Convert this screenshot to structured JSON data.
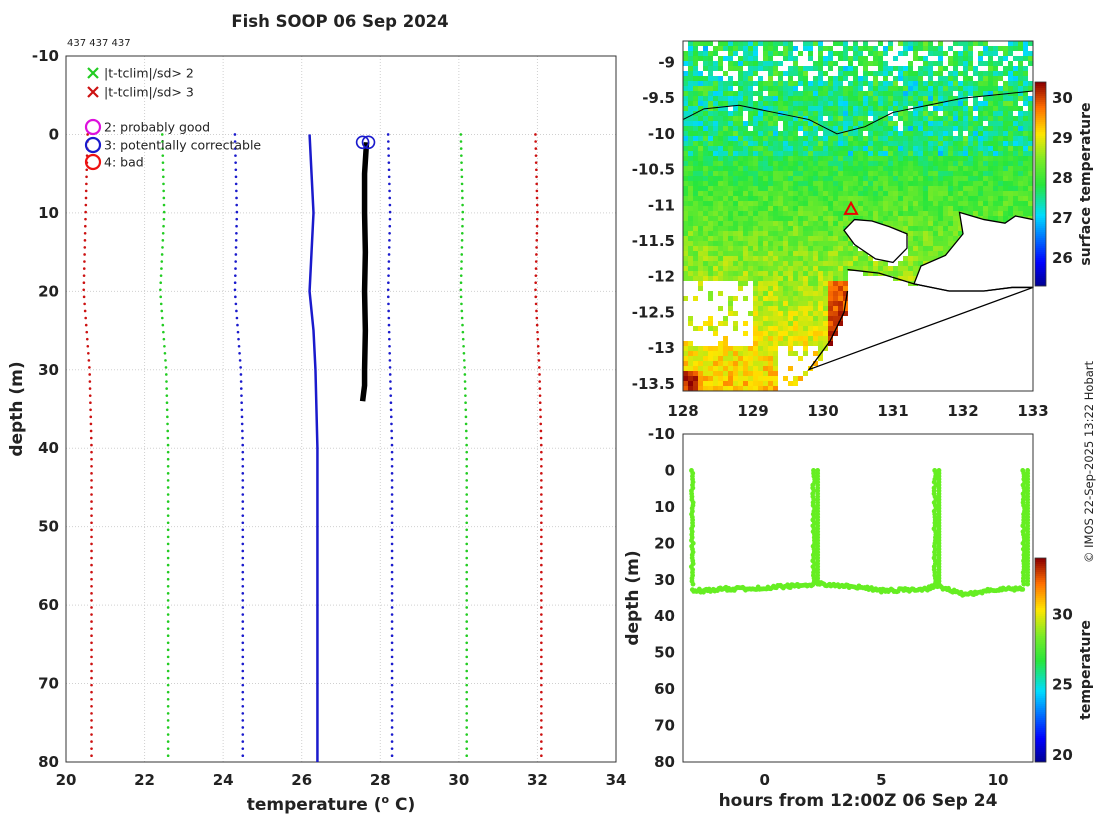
{
  "title": "Fish SOOP 06 Sep 2024",
  "id_text": "437 437 437",
  "credit": "© IMOS 22-Sep-2025 13:22 Hobart",
  "colors": {
    "green_limit": "#22cc22",
    "red_limit": "#cc1111",
    "blue_limit": "#1a1acc",
    "climatology": "#1a1acc",
    "profile": "#000000",
    "track": "#66ee22"
  },
  "chart_data": [
    {
      "type": "line",
      "name": "profile",
      "xlabel": "temperature (",
      "xlabel_sup": "o",
      "xlabel_end": " C)",
      "ylabel": "depth (m)",
      "xlim": [
        20,
        34
      ],
      "ylim": [
        -10,
        80
      ],
      "xticks": [
        "20",
        "22",
        "24",
        "26",
        "28",
        "30",
        "32",
        "34"
      ],
      "yticks": [
        "-10",
        "0",
        "10",
        "20",
        "30",
        "40",
        "50",
        "60",
        "70",
        "80"
      ],
      "legend": [
        {
          "marker": "x",
          "color": "#22cc22",
          "label": "|t-tclim|/sd> 2"
        },
        {
          "marker": "x",
          "color": "#cc1111",
          "label": "|t-tclim|/sd> 3"
        },
        {
          "marker": "o",
          "color": "#dd11dd",
          "label": "2: probably good"
        },
        {
          "marker": "o",
          "color": "#1a1acc",
          "label": "3: potentially correctable"
        },
        {
          "marker": "o",
          "color": "#ee1111",
          "label": "4: bad"
        }
      ],
      "series": [
        {
          "name": "climatology",
          "style": "solid",
          "color": "#1a1acc",
          "points": [
            [
              26.2,
              0
            ],
            [
              26.25,
              5
            ],
            [
              26.3,
              10
            ],
            [
              26.25,
              15
            ],
            [
              26.2,
              20
            ],
            [
              26.3,
              25
            ],
            [
              26.35,
              30
            ],
            [
              26.4,
              40
            ],
            [
              26.4,
              50
            ],
            [
              26.4,
              60
            ],
            [
              26.4,
              70
            ],
            [
              26.4,
              80
            ]
          ]
        },
        {
          "name": "clim -2sd",
          "style": "dotted",
          "color": "#22cc22",
          "points": [
            [
              22.45,
              0
            ],
            [
              22.5,
              10
            ],
            [
              22.4,
              20
            ],
            [
              22.55,
              30
            ],
            [
              22.6,
              40
            ],
            [
              22.6,
              60
            ],
            [
              22.6,
              80
            ]
          ]
        },
        {
          "name": "clim +2sd",
          "style": "dotted",
          "color": "#22cc22",
          "points": [
            [
              30.05,
              0
            ],
            [
              30.1,
              10
            ],
            [
              30.05,
              20
            ],
            [
              30.15,
              30
            ],
            [
              30.2,
              40
            ],
            [
              30.2,
              60
            ],
            [
              30.2,
              80
            ]
          ]
        },
        {
          "name": "clim -sd",
          "style": "dotted",
          "color": "#1a1acc",
          "points": [
            [
              24.3,
              0
            ],
            [
              24.35,
              10
            ],
            [
              24.3,
              20
            ],
            [
              24.45,
              30
            ],
            [
              24.5,
              40
            ],
            [
              24.5,
              60
            ],
            [
              24.5,
              80
            ]
          ]
        },
        {
          "name": "clim +sd",
          "style": "dotted",
          "color": "#1a1acc",
          "points": [
            [
              28.2,
              0
            ],
            [
              28.25,
              10
            ],
            [
              28.2,
              20
            ],
            [
              28.25,
              30
            ],
            [
              28.3,
              40
            ],
            [
              28.3,
              60
            ],
            [
              28.3,
              80
            ]
          ]
        },
        {
          "name": "clim -3sd",
          "style": "dotted",
          "color": "#cc1111",
          "points": [
            [
              20.55,
              0
            ],
            [
              20.5,
              10
            ],
            [
              20.45,
              20
            ],
            [
              20.6,
              30
            ],
            [
              20.65,
              40
            ],
            [
              20.65,
              60
            ],
            [
              20.65,
              80
            ]
          ]
        },
        {
          "name": "clim +3sd",
          "style": "dotted",
          "color": "#cc1111",
          "points": [
            [
              31.95,
              0
            ],
            [
              32.0,
              10
            ],
            [
              31.95,
              20
            ],
            [
              32.05,
              30
            ],
            [
              32.1,
              40
            ],
            [
              32.1,
              60
            ],
            [
              32.1,
              80
            ]
          ]
        },
        {
          "name": "profile",
          "style": "thick",
          "color": "#000000",
          "points": [
            [
              27.65,
              1
            ],
            [
              27.6,
              5
            ],
            [
              27.6,
              10
            ],
            [
              27.62,
              15
            ],
            [
              27.6,
              20
            ],
            [
              27.62,
              25
            ],
            [
              27.6,
              30
            ],
            [
              27.6,
              32
            ],
            [
              27.55,
              34
            ]
          ]
        }
      ],
      "flag_markers": [
        [
          27.55,
          1
        ],
        [
          27.7,
          1
        ]
      ]
    },
    {
      "type": "heatmap",
      "name": "sst_map",
      "colorbar_label": "surface temperature",
      "xlim": [
        128,
        133
      ],
      "ylim": [
        -13.6,
        -8.7
      ],
      "clim": [
        25.3,
        30.4
      ],
      "xticks": [
        "128",
        "129",
        "130",
        "131",
        "132",
        "133"
      ],
      "yticks": [
        "-9",
        "-9.5",
        "-10",
        "-10.5",
        "-11",
        "-11.5",
        "-12",
        "-12.5",
        "-13",
        "-13.5"
      ],
      "cticks": [
        "26",
        "27",
        "28",
        "29",
        "30"
      ],
      "station": [
        130.4,
        -11.05
      ]
    },
    {
      "type": "scatter",
      "name": "depth_time",
      "xlabel": "hours from 12:00Z 06 Sep 24",
      "ylabel": "depth (m)",
      "colorbar_label": "temperature",
      "xlim": [
        -3.5,
        11.5
      ],
      "ylim": [
        -10,
        80
      ],
      "clim": [
        19.5,
        34
      ],
      "xticks": [
        "0",
        "5",
        "10"
      ],
      "yticks": [
        "-10",
        "0",
        "10",
        "20",
        "30",
        "40",
        "50",
        "60",
        "70",
        "80"
      ],
      "cticks": [
        "20",
        "25",
        "30"
      ],
      "profile_casts_hours": [
        -3.1,
        2.1,
        7.3,
        11.1
      ],
      "bottom_track": [
        [
          -3.1,
          33
        ],
        [
          -2.5,
          33
        ],
        [
          -1.8,
          32.5
        ],
        [
          -1,
          32.5
        ],
        [
          0,
          32.2
        ],
        [
          1,
          31.8
        ],
        [
          2,
          31.5
        ],
        [
          2.1,
          31
        ],
        [
          3,
          31.5
        ],
        [
          4,
          32
        ],
        [
          5,
          33
        ],
        [
          6,
          32.8
        ],
        [
          7,
          32.5
        ],
        [
          7.3,
          31.5
        ],
        [
          8,
          33
        ],
        [
          8.5,
          34
        ],
        [
          9,
          33.8
        ],
        [
          9.5,
          33
        ],
        [
          10,
          32.7
        ],
        [
          11.1,
          32.5
        ]
      ]
    }
  ]
}
